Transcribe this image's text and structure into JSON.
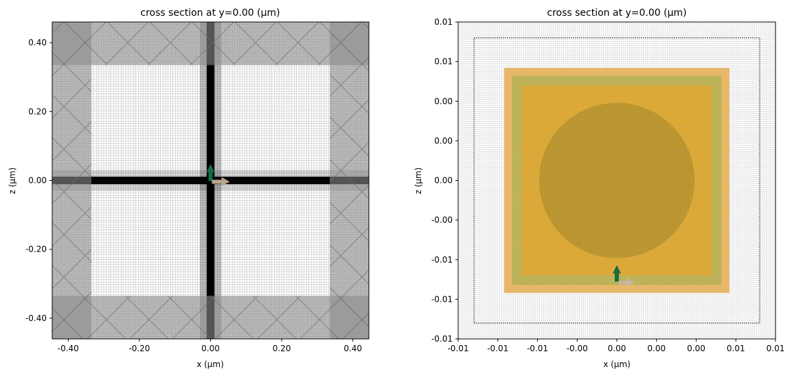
{
  "chart_data": [
    {
      "type": "heatmap",
      "title": "cross section at y=0.00 (μm)",
      "xlabel": "x (μm)",
      "ylabel": "z (μm)",
      "xlim": [
        -0.445,
        0.445
      ],
      "ylim": [
        -0.46,
        0.46
      ],
      "xticks": [
        {
          "v": -0.4,
          "label": "-0.40"
        },
        {
          "v": -0.2,
          "label": "-0.20"
        },
        {
          "v": 0,
          "label": "0.00"
        },
        {
          "v": 0.2,
          "label": "0.20"
        },
        {
          "v": 0.4,
          "label": "0.40"
        }
      ],
      "yticks": [
        {
          "v": 0.4,
          "label": "0.40"
        },
        {
          "v": 0.2,
          "label": "0.20"
        },
        {
          "v": 0,
          "label": "0.00"
        },
        {
          "v": -0.2,
          "label": "-0.20"
        },
        {
          "v": -0.4,
          "label": "-0.40"
        }
      ],
      "pml_boundary": 0.335,
      "structure_width": 0.022,
      "grid": true,
      "colors": {
        "pml": "#8c8c8c",
        "structure": "#000000",
        "source_arrow": "#0e6b45",
        "polarization_arrow": "#b8a48c"
      }
    },
    {
      "type": "heatmap",
      "title": "cross section at y=0.00 (μm)",
      "xlabel": "x (μm)",
      "ylabel": "z (μm)",
      "xlim": [
        -0.01,
        0.01
      ],
      "ylim": [
        -0.01,
        0.01
      ],
      "xticks": [
        "-0.01",
        "-0.01",
        "-0.01",
        "-0.00",
        "0.00",
        "0.00",
        "0.00",
        "0.01",
        "0.01"
      ],
      "yticks": [
        "0.01",
        "0.01",
        "0.00",
        "0.00",
        "0.00",
        "-0.00",
        "-0.01",
        "-0.01",
        "-0.01"
      ],
      "rects": [
        {
          "half": 0.0071,
          "color": "#f0a830",
          "opacity": 0.8
        },
        {
          "half": 0.0066,
          "color": "#a8b040",
          "opacity": 0.7
        },
        {
          "half": 0.006,
          "color": "#eaa51a",
          "opacity": 0.85
        }
      ],
      "circle": {
        "cx": 0,
        "cz": 0,
        "r": 0.0049,
        "color": "#9c7e10",
        "opacity": 0.55
      },
      "dotted_box_half": 0.009,
      "source_z": -0.0063,
      "grid": true,
      "colors": {
        "source_arrow": "#1a6b3a",
        "polarization_arrow": "#c8b4a0"
      }
    }
  ]
}
